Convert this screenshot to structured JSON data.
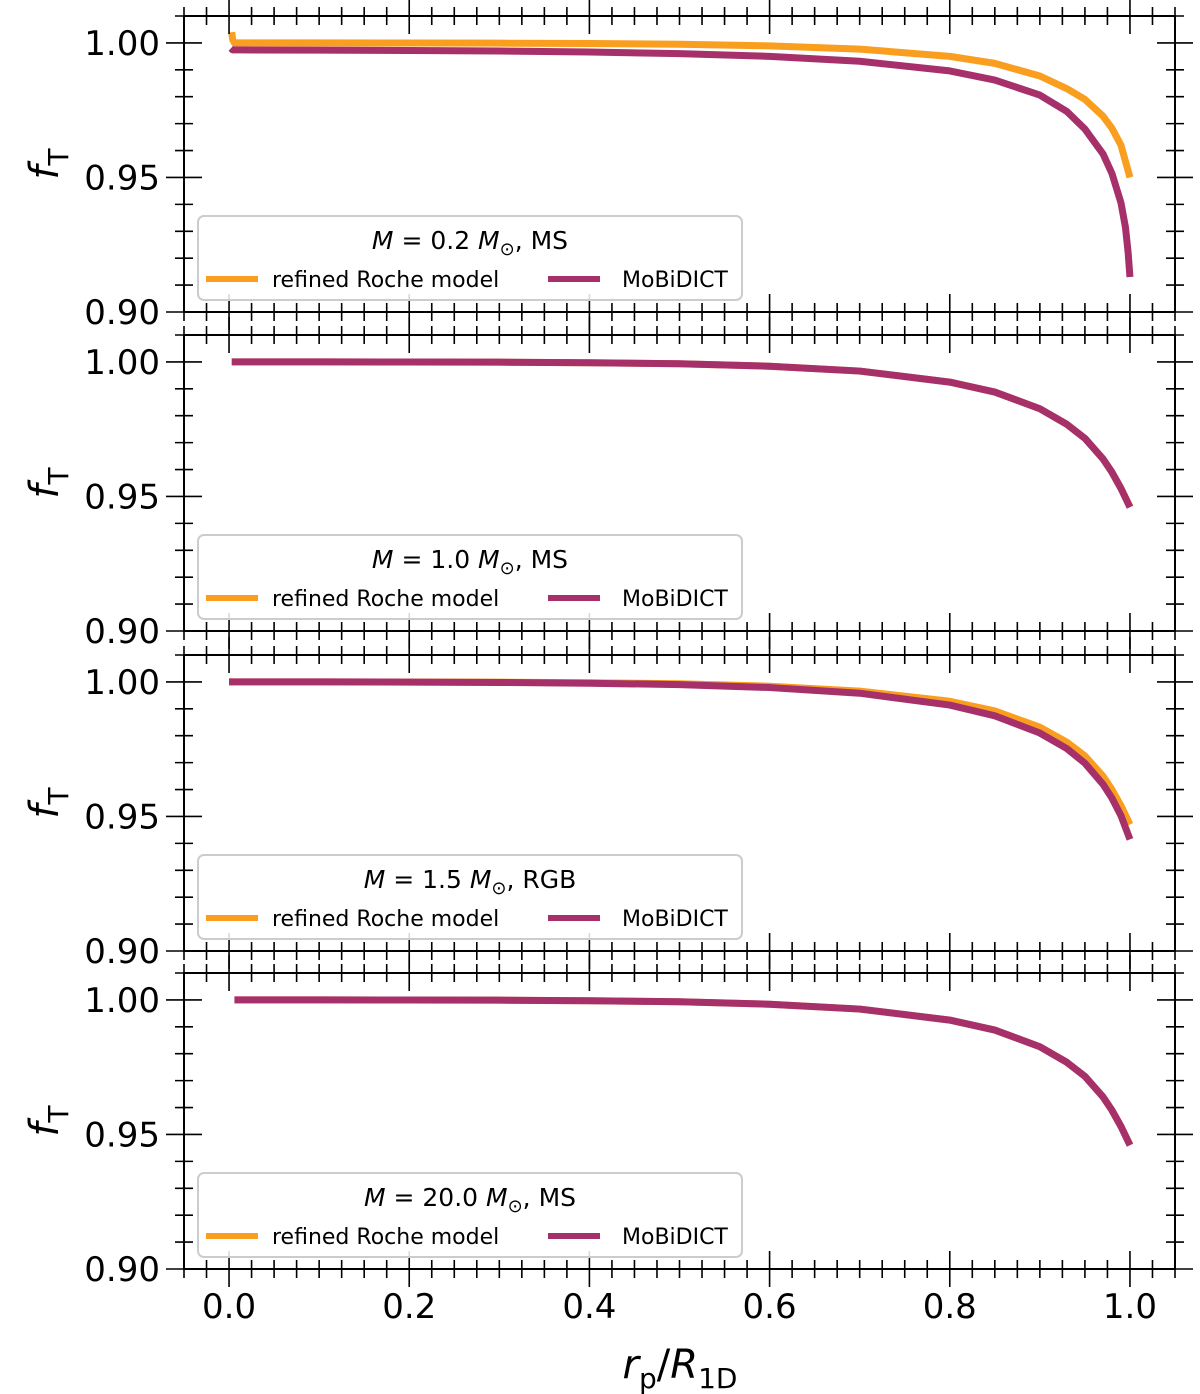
{
  "figure": {
    "xlabel_main": "r",
    "xlabel_sub": "p",
    "xlabel_slash": "/",
    "xlabel_main2": "R",
    "xlabel_sub2": "1D",
    "ylabel_main": "f",
    "ylabel_sub": "T"
  },
  "colors": {
    "refined_roche": "#fa9e20",
    "mobidict": "#a6306a",
    "legend_border": "#cccccc",
    "axis": "#000000"
  },
  "legend_labels": {
    "refined_roche": "refined Roche model",
    "mobidict": "MoBiDICT"
  },
  "chart_data": [
    {
      "type": "line",
      "panel_title_M": "M",
      "panel_title_rest": " = 0.2 ",
      "panel_title_Msun": "M",
      "panel_title_sun": "⊙",
      "panel_title_stage": ", MS",
      "xlim": [
        -0.05,
        1.05
      ],
      "ylim": [
        0.9,
        1.01
      ],
      "xticks": [
        "0.0",
        "0.2",
        "0.4",
        "0.6",
        "0.8",
        "1.0"
      ],
      "yticks": [
        "0.90",
        "0.95",
        "1.00"
      ],
      "legend_position": "bottom-left",
      "series": [
        {
          "name": "refined Roche model",
          "x": [
            0.003,
            0.004,
            0.006,
            0.01,
            0.1,
            0.2,
            0.3,
            0.4,
            0.5,
            0.6,
            0.7,
            0.8,
            0.85,
            0.9,
            0.93,
            0.95,
            0.97,
            0.98,
            0.99,
            1.0
          ],
          "y": [
            1.004,
            1.0012,
            1.0,
            1.0,
            1.0,
            0.99995,
            0.9999,
            0.9998,
            0.9995,
            0.9989,
            0.9977,
            0.995,
            0.9924,
            0.9877,
            0.983,
            0.979,
            0.9728,
            0.9683,
            0.962,
            0.95
          ]
        },
        {
          "name": "MoBiDICT",
          "x": [
            0.002,
            0.004,
            0.01,
            0.1,
            0.2,
            0.3,
            0.4,
            0.5,
            0.6,
            0.7,
            0.8,
            0.85,
            0.9,
            0.93,
            0.95,
            0.97,
            0.98,
            0.99,
            0.995,
            0.998,
            1.0
          ],
          "y": [
            0.998,
            0.9974,
            0.9974,
            0.9973,
            0.9972,
            0.997,
            0.9966,
            0.996,
            0.995,
            0.9932,
            0.9896,
            0.9862,
            0.9806,
            0.9745,
            0.968,
            0.9588,
            0.9515,
            0.9406,
            0.9315,
            0.922,
            0.913
          ]
        }
      ]
    },
    {
      "type": "line",
      "panel_title_M": "M",
      "panel_title_rest": " = 1.0 ",
      "panel_title_Msun": "M",
      "panel_title_sun": "⊙",
      "panel_title_stage": ", MS",
      "xlim": [
        -0.05,
        1.05
      ],
      "ylim": [
        0.9,
        1.01
      ],
      "xticks": [
        "0.0",
        "0.2",
        "0.4",
        "0.6",
        "0.8",
        "1.0"
      ],
      "yticks": [
        "0.90",
        "0.95",
        "1.00"
      ],
      "legend_position": "bottom-left",
      "series": [
        {
          "name": "refined Roche model",
          "x": [
            0.003,
            0.1,
            0.2,
            0.3,
            0.4,
            0.5,
            0.6,
            0.7,
            0.8,
            0.85,
            0.9,
            0.93,
            0.95,
            0.97,
            0.98,
            0.99,
            1.0
          ],
          "y": [
            1.0,
            1.0,
            0.99995,
            0.9999,
            0.9997,
            0.9993,
            0.9984,
            0.9966,
            0.9925,
            0.9888,
            0.9826,
            0.9768,
            0.9716,
            0.964,
            0.959,
            0.953,
            0.9462
          ]
        },
        {
          "name": "MoBiDICT",
          "x": [
            0.003,
            0.1,
            0.2,
            0.3,
            0.4,
            0.5,
            0.6,
            0.7,
            0.8,
            0.85,
            0.9,
            0.93,
            0.95,
            0.97,
            0.98,
            0.99,
            1.0
          ],
          "y": [
            1.0,
            1.0,
            0.99995,
            0.9999,
            0.9997,
            0.9993,
            0.9984,
            0.9966,
            0.9925,
            0.9888,
            0.9826,
            0.9768,
            0.9716,
            0.964,
            0.959,
            0.953,
            0.946
          ]
        }
      ]
    },
    {
      "type": "line",
      "panel_title_M": "M",
      "panel_title_rest": " = 1.5 ",
      "panel_title_Msun": "M",
      "panel_title_sun": "⊙",
      "panel_title_stage": ", RGB",
      "xlim": [
        -0.05,
        1.05
      ],
      "ylim": [
        0.9,
        1.01
      ],
      "xticks": [
        "0.0",
        "0.2",
        "0.4",
        "0.6",
        "0.8",
        "1.0"
      ],
      "yticks": [
        "0.90",
        "0.95",
        "1.00"
      ],
      "legend_position": "bottom-left",
      "series": [
        {
          "name": "refined Roche model",
          "x": [
            0.0,
            0.1,
            0.2,
            0.3,
            0.4,
            0.5,
            0.6,
            0.7,
            0.8,
            0.85,
            0.9,
            0.93,
            0.95,
            0.97,
            0.98,
            0.99,
            1.0
          ],
          "y": [
            1.0,
            1.0,
            0.99995,
            0.9999,
            0.9997,
            0.9993,
            0.9984,
            0.9966,
            0.9928,
            0.9892,
            0.9832,
            0.9776,
            0.9725,
            0.965,
            0.96,
            0.954,
            0.947
          ]
        },
        {
          "name": "MoBiDICT",
          "x": [
            0.0,
            0.1,
            0.2,
            0.3,
            0.4,
            0.5,
            0.6,
            0.7,
            0.8,
            0.85,
            0.9,
            0.93,
            0.95,
            0.97,
            0.98,
            0.99,
            1.0
          ],
          "y": [
            1.0,
            1.0,
            0.99993,
            0.9998,
            0.9995,
            0.999,
            0.9979,
            0.9958,
            0.9914,
            0.9874,
            0.981,
            0.9752,
            0.9698,
            0.962,
            0.9568,
            0.9503,
            0.9415
          ]
        }
      ]
    },
    {
      "type": "line",
      "panel_title_M": "M",
      "panel_title_rest": " = 20.0 ",
      "panel_title_Msun": "M",
      "panel_title_sun": "⊙",
      "panel_title_stage": ", MS",
      "xlim": [
        -0.05,
        1.05
      ],
      "ylim": [
        0.9,
        1.01
      ],
      "xticks": [
        "0.0",
        "0.2",
        "0.4",
        "0.6",
        "0.8",
        "1.0"
      ],
      "yticks": [
        "0.90",
        "0.95",
        "1.00"
      ],
      "legend_position": "bottom-left",
      "series": [
        {
          "name": "refined Roche model",
          "x": [
            0.006,
            0.1,
            0.2,
            0.3,
            0.4,
            0.5,
            0.6,
            0.7,
            0.8,
            0.85,
            0.9,
            0.93,
            0.95,
            0.97,
            0.98,
            0.99,
            1.0
          ],
          "y": [
            1.0,
            1.0,
            0.99995,
            0.9999,
            0.9997,
            0.9993,
            0.9984,
            0.9966,
            0.9925,
            0.9888,
            0.9826,
            0.9768,
            0.9716,
            0.964,
            0.959,
            0.953,
            0.9462
          ]
        },
        {
          "name": "MoBiDICT",
          "x": [
            0.006,
            0.1,
            0.2,
            0.3,
            0.4,
            0.5,
            0.6,
            0.7,
            0.8,
            0.85,
            0.9,
            0.93,
            0.95,
            0.97,
            0.98,
            0.99,
            1.0
          ],
          "y": [
            1.0,
            1.0,
            0.99995,
            0.9999,
            0.9997,
            0.9993,
            0.9984,
            0.9966,
            0.9925,
            0.9888,
            0.9826,
            0.9768,
            0.9716,
            0.964,
            0.959,
            0.953,
            0.946
          ]
        }
      ]
    }
  ]
}
